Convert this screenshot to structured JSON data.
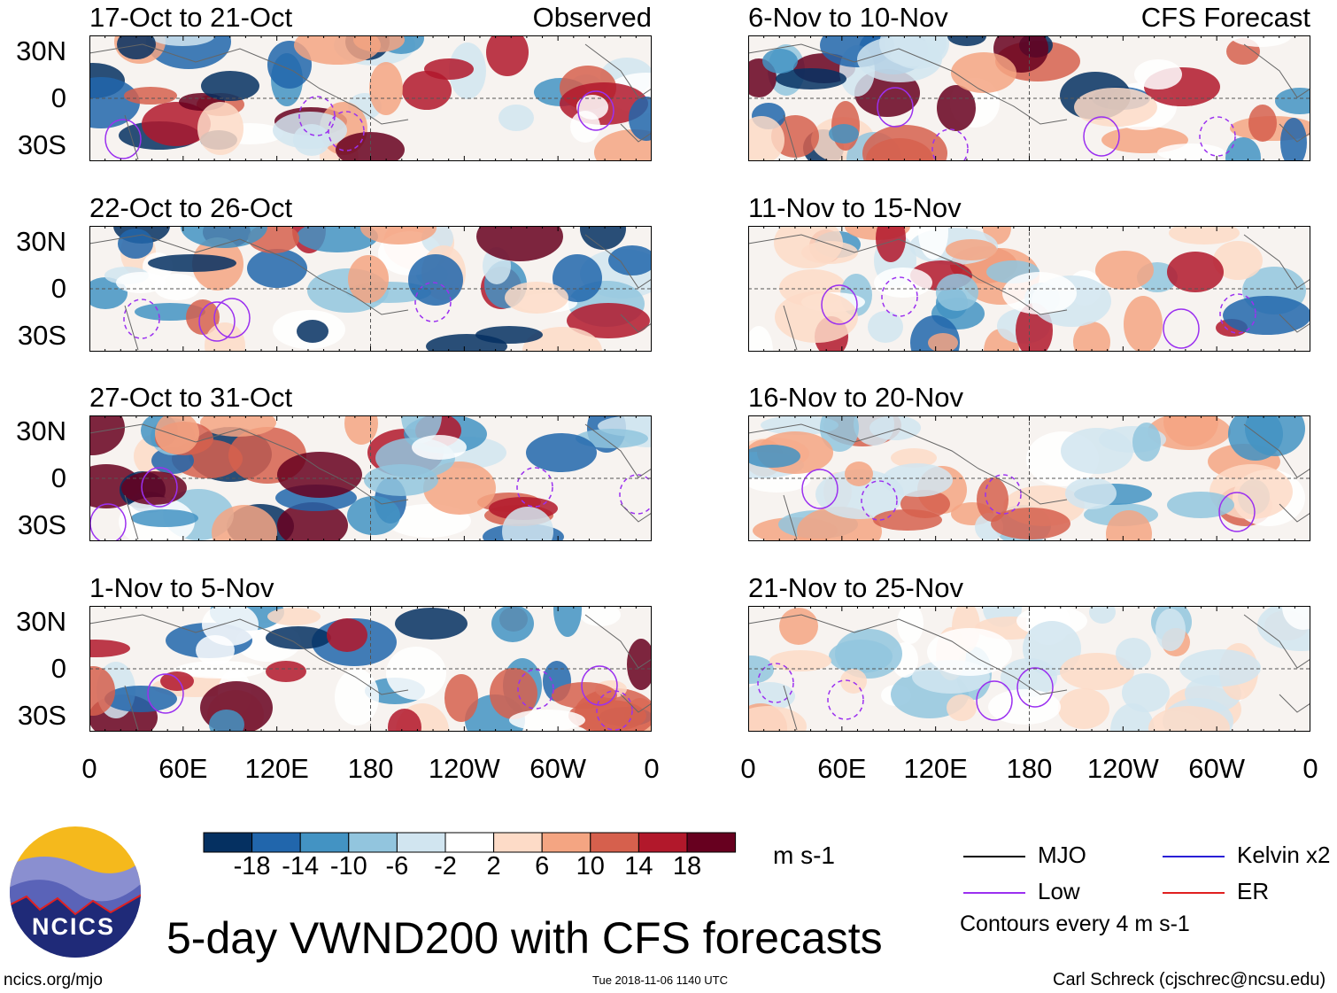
{
  "chart_data": {
    "type": "heatmap",
    "title": "5-day VWND200 with CFS forecasts",
    "variable": "VWND200",
    "units": "m s-1",
    "columns": [
      {
        "label": "Observed",
        "panels": [
          "17-Oct to 21-Oct",
          "22-Oct to 26-Oct",
          "27-Oct to 31-Oct",
          "1-Nov to 5-Nov"
        ]
      },
      {
        "label": "CFS Forecast",
        "panels": [
          "6-Nov to 10-Nov",
          "11-Nov to 15-Nov",
          "16-Nov to 20-Nov",
          "21-Nov to 25-Nov"
        ]
      }
    ],
    "y_ticks": [
      "30N",
      "0",
      "30S"
    ],
    "x_ticks": [
      "0",
      "60E",
      "120E",
      "180",
      "120W",
      "60W",
      "0"
    ],
    "colorbar": {
      "levels": [
        "-18",
        "-14",
        "-10",
        "-6",
        "-2",
        "2",
        "6",
        "10",
        "14",
        "18"
      ],
      "colors": [
        "#053061",
        "#2166ac",
        "#4393c3",
        "#92c5de",
        "#d1e5f0",
        "#ffffff",
        "#fddbc7",
        "#f4a582",
        "#d6604d",
        "#b2182b",
        "#67001f"
      ]
    },
    "legend": [
      {
        "label": "MJO",
        "color": "#000000"
      },
      {
        "label": "Kelvin x2",
        "color": "#2a1fd6"
      },
      {
        "label": "Low",
        "color": "#9b30f0"
      },
      {
        "label": "ER",
        "color": "#e02020"
      }
    ],
    "contour_note": "Contours every 4 m s-1"
  },
  "footer": {
    "logo_text": "NCICS",
    "site": "ncics.org/mjo",
    "timestamp": "Tue 2018-11-06 1140 UTC",
    "author": "Carl Schreck (cjschrec@ncsu.edu)"
  }
}
